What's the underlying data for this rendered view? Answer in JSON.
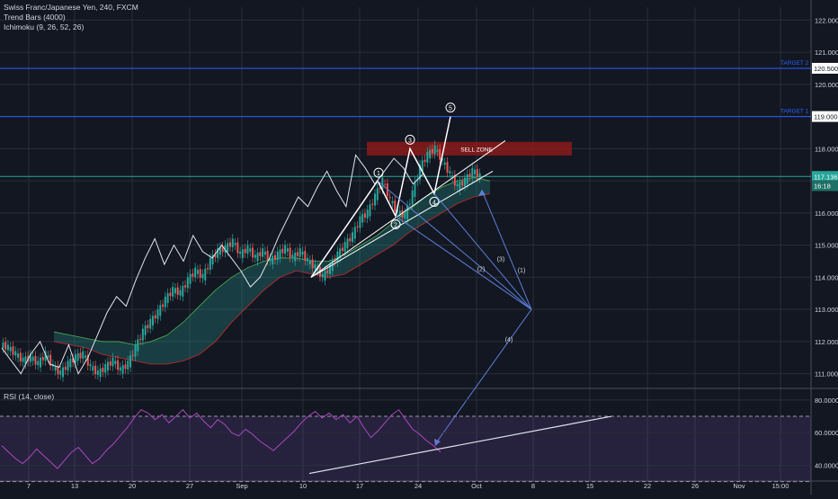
{
  "legend": {
    "symbol": "Swiss Franc/Japanese Yen, 240, FXCM",
    "indicator_1": "Trend Bars (4000)",
    "indicator_2": "Ichimoku (9, 26, 52, 26)",
    "rsi_label": "RSI (14, close)"
  },
  "chart_data": [
    {
      "type": "candlestick",
      "title": "Swiss Franc/Japanese Yen, 240, FXCM",
      "x_tick_labels": [
        "7",
        "13",
        "20",
        "27",
        "Sep",
        "10",
        "17",
        "24",
        "Oct",
        "8",
        "15",
        "22",
        "26",
        "Nov",
        "15:00"
      ],
      "y_tick_labels": [
        "111.000",
        "112.000",
        "113.000",
        "114.000",
        "115.000",
        "116.000",
        "117.000",
        "118.000",
        "119.000",
        "120.000",
        "121.000",
        "122.000"
      ],
      "ylim": [
        110.6,
        122.4
      ],
      "grid": true,
      "price_flags": [
        {
          "label": "120.500",
          "value": 120.5,
          "color": "#ffffff",
          "bg": "#ffffff",
          "text_color": "#131722"
        },
        {
          "label": "119.000",
          "value": 119.0,
          "color": "#ffffff",
          "bg": "#ffffff",
          "text_color": "#131722"
        },
        {
          "label": "117.136",
          "value": 117.136,
          "color": "#26a69a",
          "bg": "#26a69a",
          "text_color": "#ffffff"
        },
        {
          "label": "16:18",
          "value": 116.85,
          "color": "#26a69a",
          "bg": "#1e7066",
          "text_color": "#ffffff"
        }
      ],
      "horizontal_lines": [
        {
          "value": 120.5,
          "label": "TARGET 2",
          "color": "#2962ff"
        },
        {
          "value": 119.0,
          "label": "TARGET 1",
          "color": "#2962ff"
        },
        {
          "value": 117.136,
          "label": "",
          "color": "#26a69a"
        }
      ],
      "zones": [
        {
          "label": "SELL ZONE",
          "from": 117.9,
          "to": 118.1,
          "color": "#8b1a1a"
        }
      ],
      "wave_labels": [
        "1",
        "2",
        "3",
        "4",
        "5"
      ],
      "projection_labels": [
        "(1)",
        "(2)",
        "(3)",
        "(4)"
      ],
      "price_series": [
        111.9,
        111.8,
        111.6,
        111.4,
        111.5,
        111.3,
        111.6,
        111.2,
        111.0,
        111.3,
        111.5,
        111.6,
        111.2,
        111.0,
        111.2,
        111.4,
        111.1,
        111.3,
        111.8,
        112.3,
        112.6,
        112.9,
        113.3,
        113.6,
        113.5,
        113.9,
        114.2,
        114.0,
        114.5,
        114.8,
        114.9,
        115.1,
        114.7,
        114.9,
        114.6,
        114.8,
        114.5,
        114.7,
        114.9,
        114.6,
        114.8,
        114.5,
        114.3,
        114.0,
        114.3,
        114.7,
        115.0,
        115.3,
        115.8,
        116.0,
        116.5,
        117.0,
        116.4,
        116.0,
        115.9,
        116.6,
        117.4,
        117.8,
        118.0,
        117.6,
        117.2,
        116.8,
        117.0,
        117.3,
        117.136
      ],
      "white_line_series": [
        111.8,
        111.4,
        111.0,
        111.6,
        112.0,
        111.3,
        111.2,
        111.9,
        111.0,
        111.5,
        112.2,
        112.9,
        113.4,
        113.1,
        113.9,
        114.6,
        115.2,
        114.4,
        115.0,
        114.5,
        115.3,
        114.8,
        114.6,
        115.0,
        114.6,
        114.2,
        113.7,
        114.0,
        114.6,
        115.3,
        115.9,
        116.5,
        116.2,
        116.8,
        117.3,
        116.7,
        116.2,
        117.8,
        117.4,
        116.9,
        117.3,
        117.7,
        117.4,
        116.9,
        117.2
      ],
      "cloud_upper": [
        112.3,
        112.2,
        112.1,
        112.0,
        112.0,
        111.9,
        112.0,
        112.2,
        112.6,
        113.1,
        113.6,
        114.0,
        114.3,
        114.5,
        114.6,
        114.6,
        114.5,
        114.5,
        114.7,
        115.0,
        115.3,
        115.7,
        116.1,
        116.5,
        116.8,
        117.0,
        117.1,
        117.0
      ],
      "cloud_lower": [
        112.0,
        111.9,
        111.8,
        111.6,
        111.5,
        111.4,
        111.3,
        111.3,
        111.4,
        111.6,
        112.0,
        112.6,
        113.1,
        113.6,
        114.0,
        114.2,
        114.1,
        114.0,
        114.1,
        114.4,
        114.7,
        115.0,
        115.4,
        115.7,
        116.0,
        116.3,
        116.5,
        116.6
      ]
    },
    {
      "type": "line",
      "title": "RSI (14, close)",
      "y_tick_labels": [
        "40.0000",
        "60.0000",
        "80.0000"
      ],
      "ylim": [
        32,
        86
      ],
      "bands": [
        30,
        70
      ],
      "series": [
        {
          "values": [
            52,
            48,
            44,
            41,
            45,
            50,
            46,
            42,
            38,
            43,
            48,
            51,
            46,
            41,
            44,
            49,
            53,
            58,
            63,
            69,
            74,
            72,
            68,
            71,
            66,
            70,
            74,
            69,
            72,
            67,
            63,
            68,
            65,
            60,
            58,
            62,
            59,
            55,
            52,
            49,
            53,
            57,
            61,
            66,
            70,
            73,
            69,
            72,
            68,
            71,
            66,
            70,
            63,
            57,
            61,
            66,
            71,
            74,
            68,
            62,
            59,
            55,
            52,
            48
          ]
        }
      ],
      "trendline": {
        "from": 35,
        "to": 70
      }
    }
  ]
}
